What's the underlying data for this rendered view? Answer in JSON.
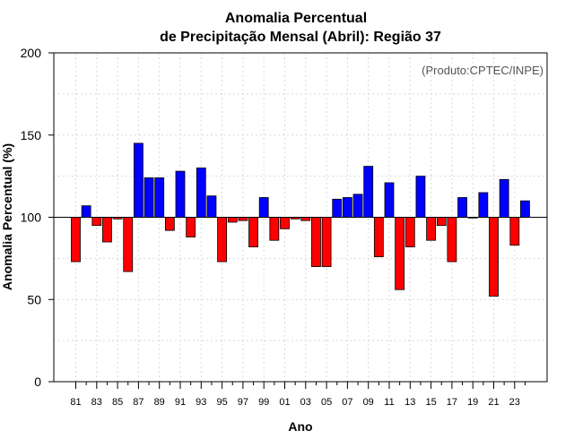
{
  "chart_data": {
    "type": "bar",
    "title_line1": "Anomalia Percentual",
    "title_line2": "de Precipitação Mensal (Abril): Região 37",
    "xlabel": "Ano",
    "ylabel": "Anomalia Percentual (%)",
    "annotation": "(Produto:CPTEC/INPE)",
    "ylim": [
      0,
      200
    ],
    "yticks": [
      0,
      50,
      100,
      150,
      200
    ],
    "baseline": 100,
    "grid": true,
    "colors": {
      "above": "#0000ff",
      "below": "#ff0000",
      "edge": "#000000",
      "grid": "#d9d9d9"
    },
    "categories": [
      "81",
      "82",
      "83",
      "84",
      "85",
      "86",
      "87",
      "88",
      "89",
      "90",
      "91",
      "92",
      "93",
      "94",
      "95",
      "96",
      "97",
      "98",
      "99",
      "00",
      "01",
      "02",
      "03",
      "04",
      "05",
      "06",
      "07",
      "08",
      "09",
      "10",
      "11",
      "12",
      "13",
      "14",
      "15",
      "16",
      "17",
      "18",
      "19",
      "20",
      "21",
      "22",
      "23",
      "24"
    ],
    "xtick_labels": [
      "81",
      "83",
      "85",
      "87",
      "89",
      "91",
      "93",
      "95",
      "97",
      "99",
      "01",
      "03",
      "05",
      "07",
      "09",
      "11",
      "13",
      "15",
      "17",
      "19",
      "21",
      "23"
    ],
    "values": [
      73,
      107,
      95,
      85,
      99,
      67,
      145,
      124,
      124,
      92,
      128,
      88,
      130,
      113,
      73,
      97,
      98,
      82,
      112,
      86,
      93,
      99,
      98,
      70,
      70,
      111,
      112,
      114,
      131,
      76,
      121,
      56,
      82,
      125,
      86,
      95,
      73,
      112,
      100,
      115,
      52,
      123,
      83,
      110
    ]
  }
}
